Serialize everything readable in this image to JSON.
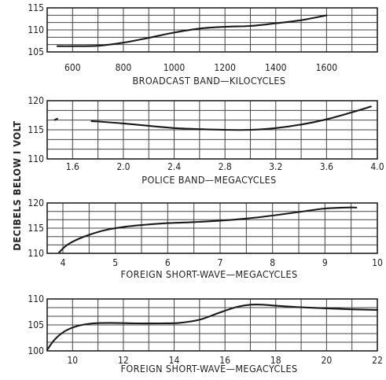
{
  "y_axis_label": "DECIBELS BELOW I VOLT",
  "chart_data": [
    {
      "type": "line",
      "xlabel": "BROADCAST BAND—KILOCYCLES",
      "ylabel": "DECIBELS BELOW I VOLT",
      "xlim": [
        500,
        1800
      ],
      "ylim": [
        105,
        115
      ],
      "x_ticks": [
        600,
        800,
        1000,
        1200,
        1400,
        1600
      ],
      "x_tick_labels": [
        "600",
        "800",
        "1000",
        "1200",
        "1400",
        "1600"
      ],
      "y_ticks": [
        105,
        110,
        115
      ],
      "y_tick_labels": [
        "105",
        "110",
        "115"
      ],
      "x_gridlines": [
        600,
        700,
        800,
        900,
        1000,
        1100,
        1200,
        1300,
        1400,
        1500,
        1600,
        1700
      ],
      "y_gridlines": [
        106.67,
        108.33,
        110,
        111.67,
        113.33
      ],
      "grid": true,
      "series": [
        {
          "x": [
            540,
            600,
            700,
            800,
            900,
            1000,
            1100,
            1200,
            1300,
            1400,
            1500,
            1600
          ],
          "y": [
            106.3,
            106.3,
            106.4,
            107.1,
            108.2,
            109.4,
            110.3,
            110.7,
            110.9,
            111.5,
            112.2,
            113.3
          ]
        }
      ]
    },
    {
      "type": "line",
      "xlabel": "POLICE BAND—MEGACYCLES",
      "ylabel": "DECIBELS BELOW I VOLT",
      "xlim": [
        1.4,
        4.0
      ],
      "ylim": [
        110,
        120
      ],
      "x_ticks": [
        1.6,
        2.0,
        2.4,
        2.8,
        3.2,
        3.6,
        4.0
      ],
      "x_tick_labels": [
        "1.6",
        "2.0",
        "2.4",
        "2.8",
        "3.2",
        "3.6",
        "4.0"
      ],
      "y_ticks": [
        110,
        115,
        120
      ],
      "y_tick_labels": [
        "110",
        "115",
        "120"
      ],
      "x_gridlines": [
        1.6,
        1.8,
        2.0,
        2.2,
        2.4,
        2.6,
        2.8,
        3.0,
        3.2,
        3.4,
        3.6,
        3.8
      ],
      "y_gridlines": [
        111.67,
        113.33,
        115,
        116.67,
        118.33
      ],
      "grid": true,
      "series": [
        {
          "x": [
            1.75,
            2.0,
            2.4,
            2.8,
            3.0,
            3.2,
            3.4,
            3.6,
            3.8,
            3.95
          ],
          "y": [
            116.5,
            116.1,
            115.3,
            115.0,
            115.0,
            115.3,
            115.9,
            116.8,
            118.0,
            119.0
          ]
        },
        {
          "x": [
            1.46,
            1.48
          ],
          "y": [
            116.7,
            116.9
          ]
        }
      ]
    },
    {
      "type": "line",
      "xlabel": "FOREIGN SHORT-WAVE—MEGACYCLES",
      "ylabel": "DECIBELS BELOW I VOLT",
      "xlim": [
        3.7,
        10
      ],
      "ylim": [
        110,
        120
      ],
      "x_ticks": [
        4,
        5,
        6,
        7,
        8,
        9,
        10
      ],
      "x_tick_labels": [
        "4",
        "5",
        "6",
        "7",
        "8",
        "9",
        "10"
      ],
      "y_ticks": [
        110,
        115,
        120
      ],
      "y_tick_labels": [
        "110",
        "115",
        "120"
      ],
      "x_gridlines": [
        4,
        4.5,
        5,
        5.5,
        6,
        6.5,
        7,
        7.5,
        8,
        8.5,
        9,
        9.5
      ],
      "y_gridlines": [
        111.67,
        113.33,
        115,
        116.67,
        118.33
      ],
      "grid": true,
      "series": [
        {
          "x": [
            3.93,
            4.1,
            4.4,
            4.8,
            5.2,
            5.6,
            6.0,
            6.5,
            7.0,
            7.5,
            8.0,
            8.5,
            9.0,
            9.4,
            9.6
          ],
          "y": [
            110.2,
            111.8,
            113.3,
            114.6,
            115.3,
            115.7,
            116.0,
            116.2,
            116.5,
            116.9,
            117.5,
            118.2,
            118.9,
            119.1,
            119.1
          ]
        }
      ]
    },
    {
      "type": "line",
      "xlabel": "FOREIGN SHORT-WAVE—MEGACYCLES",
      "ylabel": "DECIBELS BELOW I VOLT",
      "xlim": [
        9,
        22
      ],
      "ylim": [
        100,
        110
      ],
      "x_ticks": [
        10,
        12,
        14,
        16,
        18,
        20,
        22
      ],
      "x_tick_labels": [
        "10",
        "12",
        "14",
        "16",
        "18",
        "20",
        "22"
      ],
      "y_ticks": [
        100,
        105,
        110
      ],
      "y_tick_labels": [
        "100",
        "105",
        "110"
      ],
      "x_gridlines": [
        10,
        11,
        12,
        13,
        14,
        15,
        16,
        17,
        18,
        19,
        20,
        21
      ],
      "y_gridlines": [
        101.67,
        103.33,
        105,
        106.67,
        108.33
      ],
      "grid": true,
      "series": [
        {
          "x": [
            9.0,
            9.3,
            9.7,
            10.2,
            10.8,
            11.5,
            12.5,
            13.5,
            14.2,
            15.0,
            15.8,
            16.5,
            17.0,
            17.5,
            18.0,
            19.0,
            20.0,
            21.0,
            22.0
          ],
          "y": [
            100.2,
            102.2,
            103.8,
            104.8,
            105.3,
            105.4,
            105.3,
            105.3,
            105.4,
            106.0,
            107.4,
            108.5,
            108.9,
            108.9,
            108.7,
            108.4,
            108.2,
            108.0,
            107.9
          ]
        }
      ]
    }
  ]
}
